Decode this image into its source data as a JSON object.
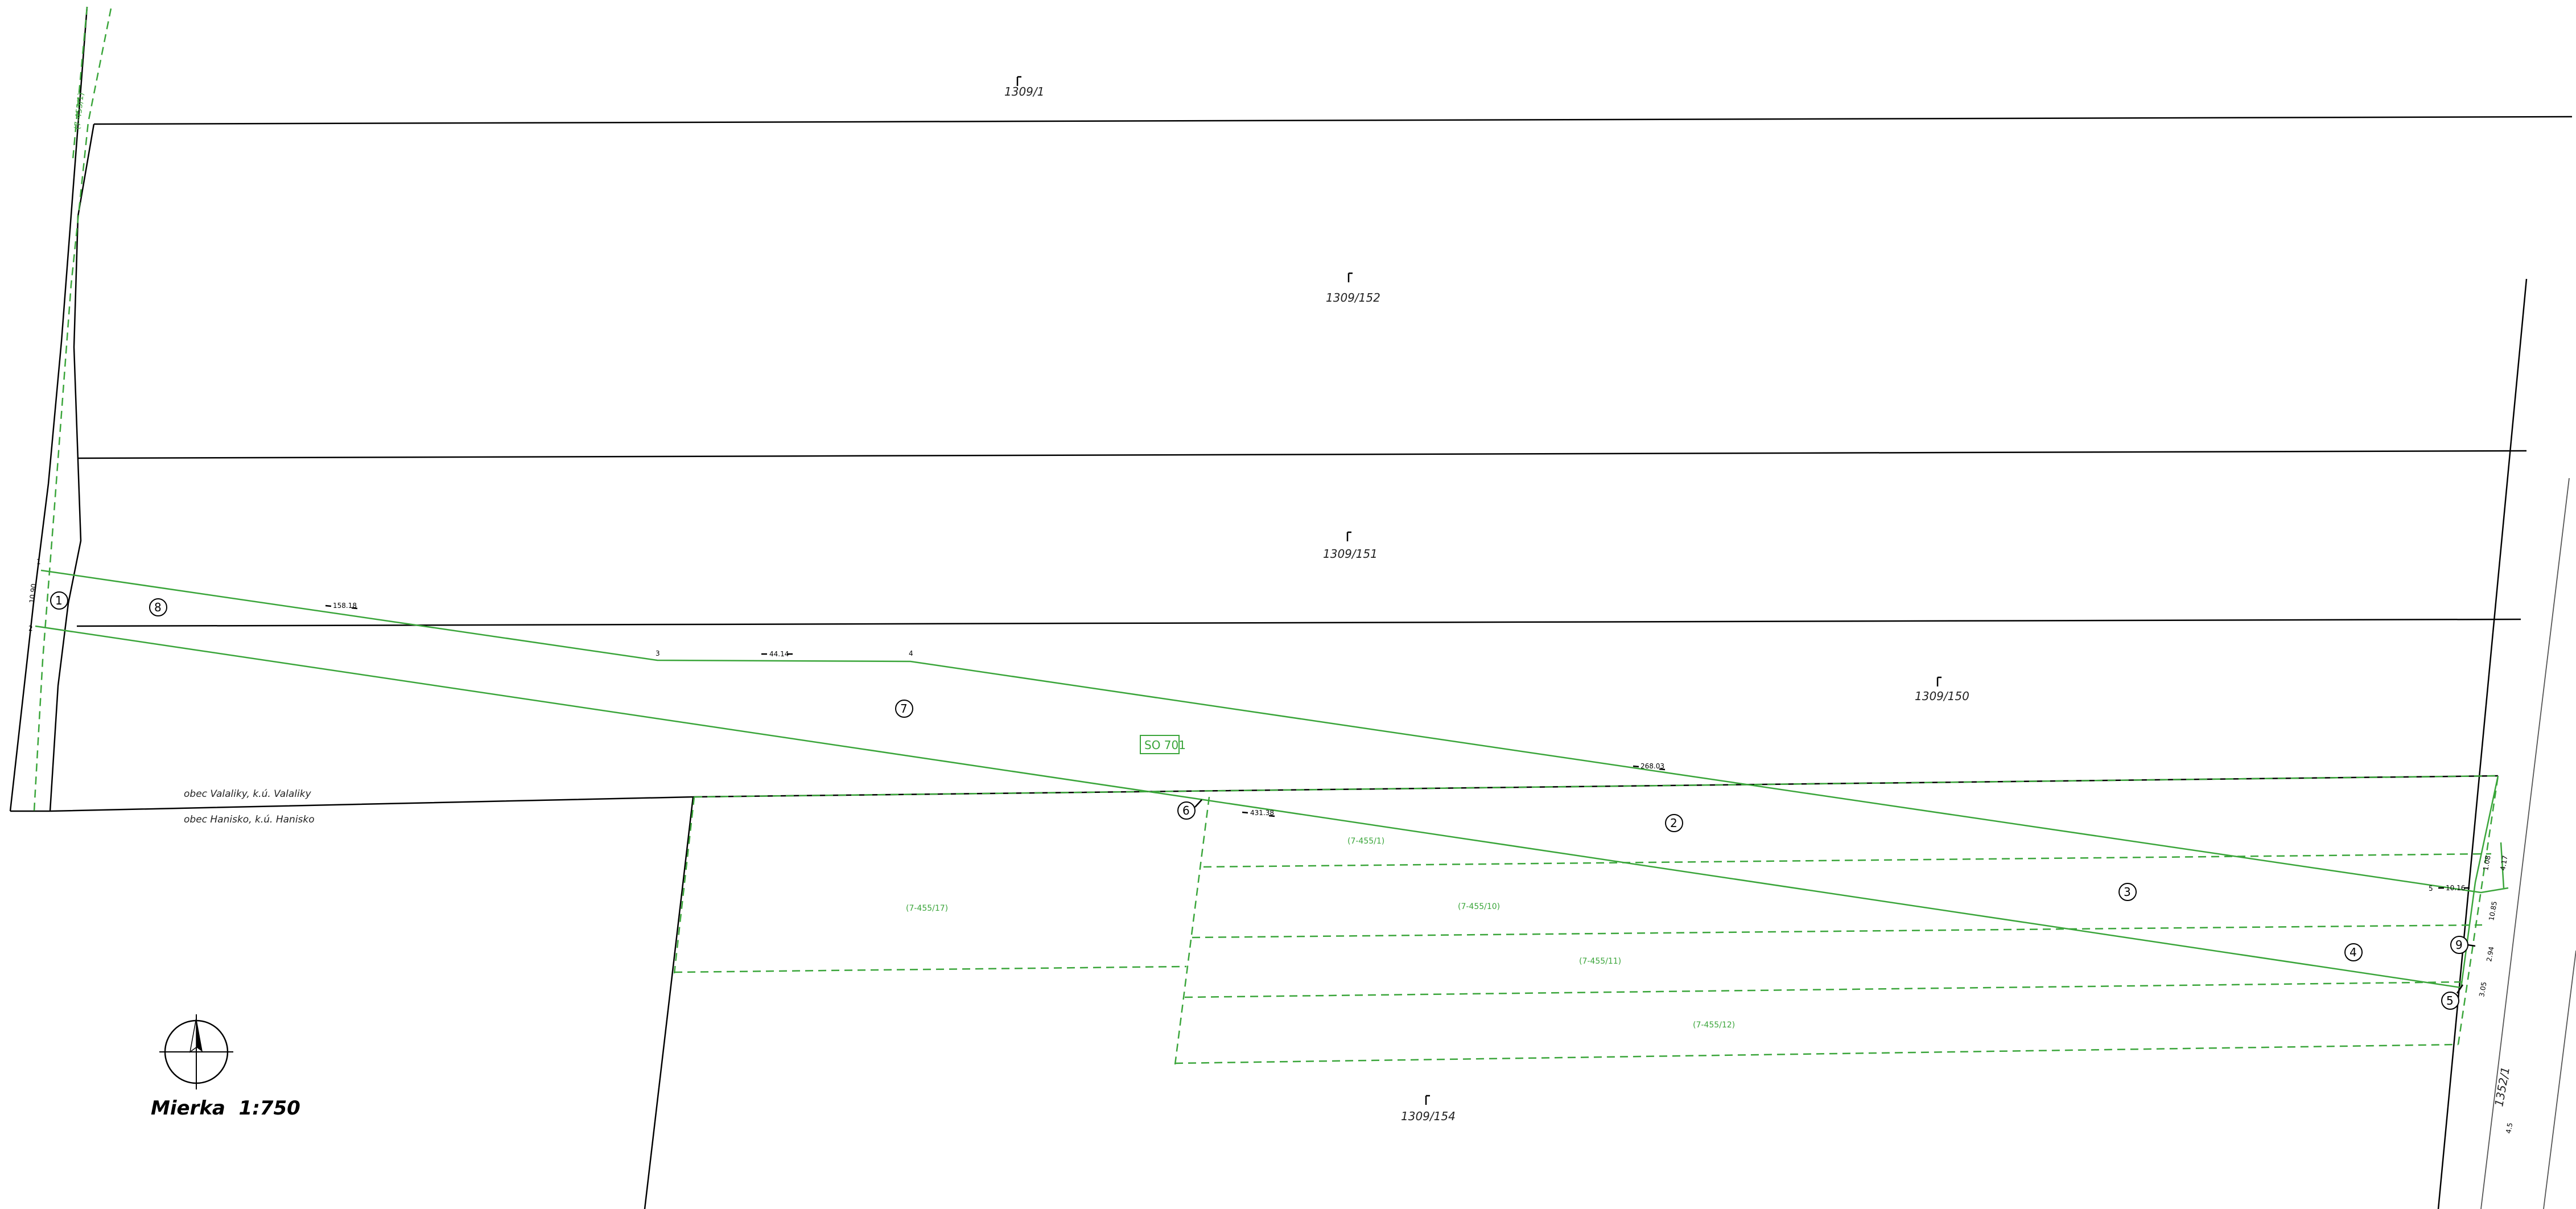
{
  "parcels_c": [
    {
      "label": "1309/1"
    },
    {
      "label": "1309/152"
    },
    {
      "label": "1309/151"
    },
    {
      "label": "1309/150"
    },
    {
      "label": "1309/154"
    },
    {
      "label": "1352/1"
    }
  ],
  "parcels_e": [
    {
      "label": "(7-455/1)"
    },
    {
      "label": "(7-455/10)"
    },
    {
      "label": "(7-455/11)"
    },
    {
      "label": "(7-455/12)"
    },
    {
      "label": "(7-455/17)"
    },
    {
      "label": "(7-455/1)"
    }
  ],
  "so_label": "SO 701",
  "municipality": {
    "north": "obec Valaliky, k.ú. Valaliky",
    "south": "obec Hanisko, k.ú. Hanisko"
  },
  "circled_numbers": [
    "1",
    "2",
    "3",
    "4",
    "5",
    "6",
    "7",
    "8",
    "9"
  ],
  "point_numbers": [
    "1",
    "2",
    "3",
    "4",
    "5"
  ],
  "dimensions": {
    "d1": "158.18",
    "d2": "44.14",
    "d3": "268.03",
    "d4": "431.38",
    "d5": "10.16",
    "d6": "10.90",
    "d7": "1.08",
    "d8": "4.17",
    "d9": "10.85",
    "d10": "2.94",
    "d11": "3.05",
    "d12": "4.5"
  },
  "scale": "Mierka  1:750",
  "colors": {
    "boundary": "#000000",
    "project": "#3aa53a"
  }
}
